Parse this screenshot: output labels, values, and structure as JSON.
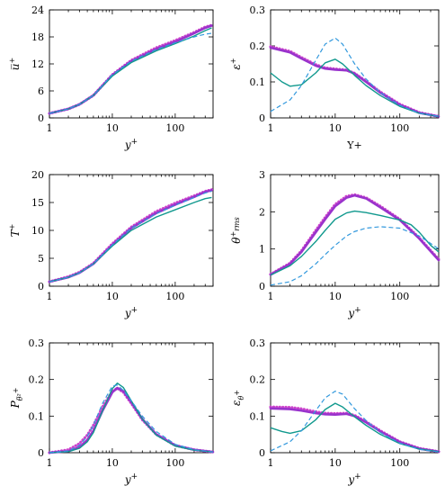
{
  "chart_data": [
    {
      "type": "line",
      "xlabel": "y+",
      "ylabel": "u̅+",
      "xscale": "log",
      "xlim": [
        1,
        400
      ],
      "ylim": [
        0,
        24
      ],
      "xticks": [
        "1",
        "10",
        "100"
      ],
      "yticks": [
        "0",
        "6",
        "12",
        "18",
        "24"
      ],
      "series": [
        {
          "style": "dotted",
          "color": "#cc44cc",
          "x": [
            1,
            2,
            3,
            5,
            10,
            20,
            50,
            100,
            200,
            300,
            380
          ],
          "y": [
            1.0,
            2.0,
            3.0,
            5.0,
            9.6,
            12.8,
            15.6,
            17.2,
            19.0,
            20.2,
            20.6
          ]
        },
        {
          "style": "solid-thick",
          "color": "#9933cc",
          "x": [
            1,
            2,
            3,
            5,
            10,
            20,
            50,
            100,
            200,
            300,
            380
          ],
          "y": [
            1.0,
            2.0,
            3.0,
            5.0,
            9.5,
            12.6,
            15.3,
            16.9,
            18.8,
            20.0,
            20.5
          ]
        },
        {
          "style": "solid",
          "color": "#11998e",
          "x": [
            1,
            2,
            3,
            5,
            10,
            20,
            50,
            100,
            200,
            300,
            380
          ],
          "y": [
            1.0,
            2.0,
            3.0,
            5.0,
            9.3,
            12.3,
            14.9,
            16.5,
            18.2,
            19.4,
            20.0
          ]
        },
        {
          "style": "dashed",
          "color": "#3399dd",
          "x": [
            1,
            2,
            3,
            5,
            10,
            20,
            50,
            100,
            200,
            300,
            380
          ],
          "y": [
            1.0,
            2.0,
            3.0,
            5.0,
            9.6,
            12.6,
            15.2,
            16.7,
            18.0,
            18.6,
            18.8
          ]
        }
      ]
    },
    {
      "type": "line",
      "xlabel": "Y+",
      "ylabel": "ε+",
      "xscale": "log",
      "xlim": [
        1,
        400
      ],
      "ylim": [
        0,
        0.3
      ],
      "xticks": [
        "1",
        "10",
        "100"
      ],
      "yticks": [
        "0",
        "0.1",
        "0.2",
        "0.3"
      ],
      "series": [
        {
          "style": "dotted",
          "color": "#cc44cc",
          "x": [
            1,
            2,
            3,
            5,
            7,
            10,
            15,
            20,
            30,
            50,
            100,
            200,
            400
          ],
          "y": [
            0.198,
            0.185,
            0.168,
            0.148,
            0.139,
            0.136,
            0.133,
            0.124,
            0.102,
            0.072,
            0.038,
            0.015,
            0.004
          ]
        },
        {
          "style": "solid-thick",
          "color": "#9933cc",
          "x": [
            1,
            2,
            3,
            5,
            7,
            10,
            15,
            20,
            30,
            50,
            100,
            200,
            400
          ],
          "y": [
            0.195,
            0.182,
            0.165,
            0.145,
            0.137,
            0.134,
            0.132,
            0.123,
            0.1,
            0.07,
            0.036,
            0.014,
            0.004
          ]
        },
        {
          "style": "solid",
          "color": "#11998e",
          "x": [
            1,
            1.5,
            2,
            3,
            5,
            7,
            10,
            13,
            20,
            30,
            50,
            100,
            200,
            400
          ],
          "y": [
            0.125,
            0.1,
            0.088,
            0.092,
            0.125,
            0.153,
            0.163,
            0.15,
            0.118,
            0.09,
            0.062,
            0.032,
            0.013,
            0.004
          ]
        },
        {
          "style": "dashed",
          "color": "#3399dd",
          "x": [
            1,
            2,
            3,
            5,
            7,
            10,
            13,
            20,
            30,
            50,
            100,
            200,
            400
          ],
          "y": [
            0.018,
            0.05,
            0.09,
            0.16,
            0.205,
            0.222,
            0.205,
            0.15,
            0.108,
            0.07,
            0.035,
            0.013,
            0.004
          ]
        }
      ]
    },
    {
      "type": "line",
      "xlabel": "y+",
      "ylabel": "T+",
      "xscale": "log",
      "xlim": [
        1,
        400
      ],
      "ylim": [
        0,
        20
      ],
      "xticks": [
        "1",
        "10",
        "100"
      ],
      "yticks": [
        "0",
        "5",
        "10",
        "15",
        "20"
      ],
      "series": [
        {
          "style": "dotted",
          "color": "#cc44cc",
          "x": [
            1,
            2,
            3,
            5,
            10,
            20,
            50,
            100,
            200,
            300,
            380
          ],
          "y": [
            0.8,
            1.7,
            2.5,
            4.1,
            7.6,
            10.6,
            13.4,
            14.9,
            16.2,
            17.0,
            17.3
          ]
        },
        {
          "style": "solid-thick",
          "color": "#9933cc",
          "x": [
            1,
            2,
            3,
            5,
            10,
            20,
            50,
            100,
            200,
            300,
            380
          ],
          "y": [
            0.8,
            1.6,
            2.4,
            4.0,
            7.4,
            10.4,
            13.1,
            14.6,
            16.0,
            16.9,
            17.2
          ]
        },
        {
          "style": "solid",
          "color": "#11998e",
          "x": [
            1,
            2,
            3,
            5,
            10,
            20,
            50,
            100,
            200,
            300,
            380
          ],
          "y": [
            0.8,
            1.6,
            2.4,
            4.0,
            7.2,
            10.0,
            12.4,
            13.7,
            15.0,
            15.7,
            15.9
          ]
        },
        {
          "style": "dashed",
          "color": "#3399dd",
          "x": [
            1,
            2,
            3,
            5,
            10,
            20,
            50,
            100,
            200,
            300,
            380
          ],
          "y": [
            0.8,
            1.6,
            2.4,
            4.0,
            7.4,
            10.4,
            13.0,
            14.5,
            15.9,
            16.7,
            17.0
          ]
        }
      ]
    },
    {
      "type": "line",
      "xlabel": "y+",
      "ylabel": "θ+rms",
      "xscale": "log",
      "xlim": [
        1,
        400
      ],
      "ylim": [
        0,
        3
      ],
      "xticks": [
        "1",
        "10",
        "100"
      ],
      "yticks": [
        "0",
        "1",
        "2",
        "3"
      ],
      "series": [
        {
          "style": "dotted",
          "color": "#cc44cc",
          "x": [
            1,
            2,
            3,
            5,
            7,
            10,
            15,
            20,
            30,
            50,
            100,
            200,
            400
          ],
          "y": [
            0.32,
            0.62,
            0.95,
            1.5,
            1.85,
            2.2,
            2.42,
            2.46,
            2.38,
            2.15,
            1.8,
            1.3,
            0.72
          ]
        },
        {
          "style": "solid-thick",
          "color": "#9933cc",
          "x": [
            1,
            2,
            3,
            5,
            7,
            10,
            15,
            20,
            30,
            50,
            100,
            200,
            400
          ],
          "y": [
            0.31,
            0.6,
            0.92,
            1.45,
            1.8,
            2.15,
            2.38,
            2.44,
            2.36,
            2.12,
            1.78,
            1.28,
            0.7
          ]
        },
        {
          "style": "solid",
          "color": "#11998e",
          "x": [
            1,
            2,
            3,
            5,
            7,
            10,
            15,
            20,
            30,
            50,
            100,
            150,
            200,
            300,
            400
          ],
          "y": [
            0.3,
            0.55,
            0.8,
            1.2,
            1.5,
            1.8,
            1.97,
            2.02,
            1.98,
            1.9,
            1.78,
            1.65,
            1.45,
            1.1,
            0.92
          ]
        },
        {
          "style": "dashed",
          "color": "#3399dd",
          "x": [
            1,
            2,
            3,
            5,
            7,
            10,
            15,
            20,
            30,
            50,
            100,
            200,
            300,
            400
          ],
          "y": [
            0.03,
            0.12,
            0.28,
            0.6,
            0.85,
            1.1,
            1.35,
            1.47,
            1.56,
            1.6,
            1.56,
            1.35,
            1.15,
            1.0
          ]
        }
      ]
    },
    {
      "type": "line",
      "xlabel": "y+",
      "ylabel": "Pθ̅²+",
      "xscale": "log",
      "xlim": [
        1,
        400
      ],
      "ylim": [
        0,
        0.3
      ],
      "xticks": [
        "1",
        "10",
        "100"
      ],
      "yticks": [
        "0",
        "0.1",
        "0.2",
        "0.3"
      ],
      "series": [
        {
          "style": "dotted",
          "color": "#cc44cc",
          "x": [
            1,
            2,
            3,
            4,
            5,
            7,
            10,
            12,
            15,
            20,
            30,
            50,
            100,
            200,
            400
          ],
          "y": [
            0.0,
            0.008,
            0.025,
            0.048,
            0.075,
            0.125,
            0.168,
            0.176,
            0.165,
            0.135,
            0.09,
            0.05,
            0.02,
            0.008,
            0.002
          ]
        },
        {
          "style": "solid-thick",
          "color": "#9933cc",
          "x": [
            1,
            2,
            3,
            4,
            5,
            7,
            10,
            12,
            15,
            20,
            30,
            50,
            100,
            200,
            400
          ],
          "y": [
            0.0,
            0.004,
            0.015,
            0.035,
            0.06,
            0.115,
            0.165,
            0.177,
            0.168,
            0.138,
            0.092,
            0.05,
            0.02,
            0.008,
            0.002
          ]
        },
        {
          "style": "solid",
          "color": "#11998e",
          "x": [
            1,
            2,
            3,
            4,
            5,
            7,
            10,
            12,
            15,
            20,
            30,
            50,
            100,
            200,
            400
          ],
          "y": [
            0.0,
            0.003,
            0.012,
            0.03,
            0.055,
            0.115,
            0.175,
            0.19,
            0.178,
            0.142,
            0.092,
            0.048,
            0.018,
            0.007,
            0.002
          ]
        },
        {
          "style": "dashed",
          "color": "#3399dd",
          "x": [
            1,
            2,
            3,
            4,
            5,
            7,
            10,
            12,
            15,
            20,
            30,
            50,
            100,
            200,
            400
          ],
          "y": [
            0.0,
            0.005,
            0.02,
            0.045,
            0.075,
            0.135,
            0.182,
            0.185,
            0.17,
            0.142,
            0.1,
            0.058,
            0.023,
            0.008,
            0.002
          ]
        }
      ]
    },
    {
      "type": "line",
      "xlabel": "y+",
      "ylabel": "εθ+",
      "xscale": "log",
      "xlim": [
        1,
        400
      ],
      "ylim": [
        0,
        0.3
      ],
      "xticks": [
        "1",
        "10",
        "100"
      ],
      "yticks": [
        "0",
        "0.1",
        "0.2",
        "0.3"
      ],
      "series": [
        {
          "style": "dotted",
          "color": "#cc44cc",
          "x": [
            1,
            2,
            3,
            5,
            7,
            10,
            15,
            20,
            30,
            50,
            100,
            200,
            400
          ],
          "y": [
            0.125,
            0.124,
            0.12,
            0.112,
            0.108,
            0.107,
            0.108,
            0.102,
            0.085,
            0.06,
            0.03,
            0.012,
            0.003
          ]
        },
        {
          "style": "solid-thick",
          "color": "#9933cc",
          "x": [
            1,
            2,
            3,
            5,
            7,
            10,
            15,
            20,
            30,
            50,
            100,
            200,
            400
          ],
          "y": [
            0.121,
            0.119,
            0.115,
            0.108,
            0.105,
            0.104,
            0.106,
            0.1,
            0.083,
            0.058,
            0.029,
            0.011,
            0.003
          ]
        },
        {
          "style": "solid",
          "color": "#11998e",
          "x": [
            1,
            1.5,
            2,
            3,
            5,
            7,
            10,
            13,
            20,
            30,
            50,
            100,
            200,
            400
          ],
          "y": [
            0.068,
            0.058,
            0.053,
            0.06,
            0.09,
            0.118,
            0.135,
            0.125,
            0.098,
            0.075,
            0.05,
            0.025,
            0.01,
            0.003
          ]
        },
        {
          "style": "dashed",
          "color": "#3399dd",
          "x": [
            1,
            2,
            3,
            5,
            7,
            10,
            13,
            20,
            30,
            50,
            100,
            200,
            400
          ],
          "y": [
            0.005,
            0.03,
            0.06,
            0.115,
            0.15,
            0.168,
            0.16,
            0.12,
            0.088,
            0.055,
            0.026,
            0.009,
            0.002
          ]
        }
      ]
    }
  ]
}
